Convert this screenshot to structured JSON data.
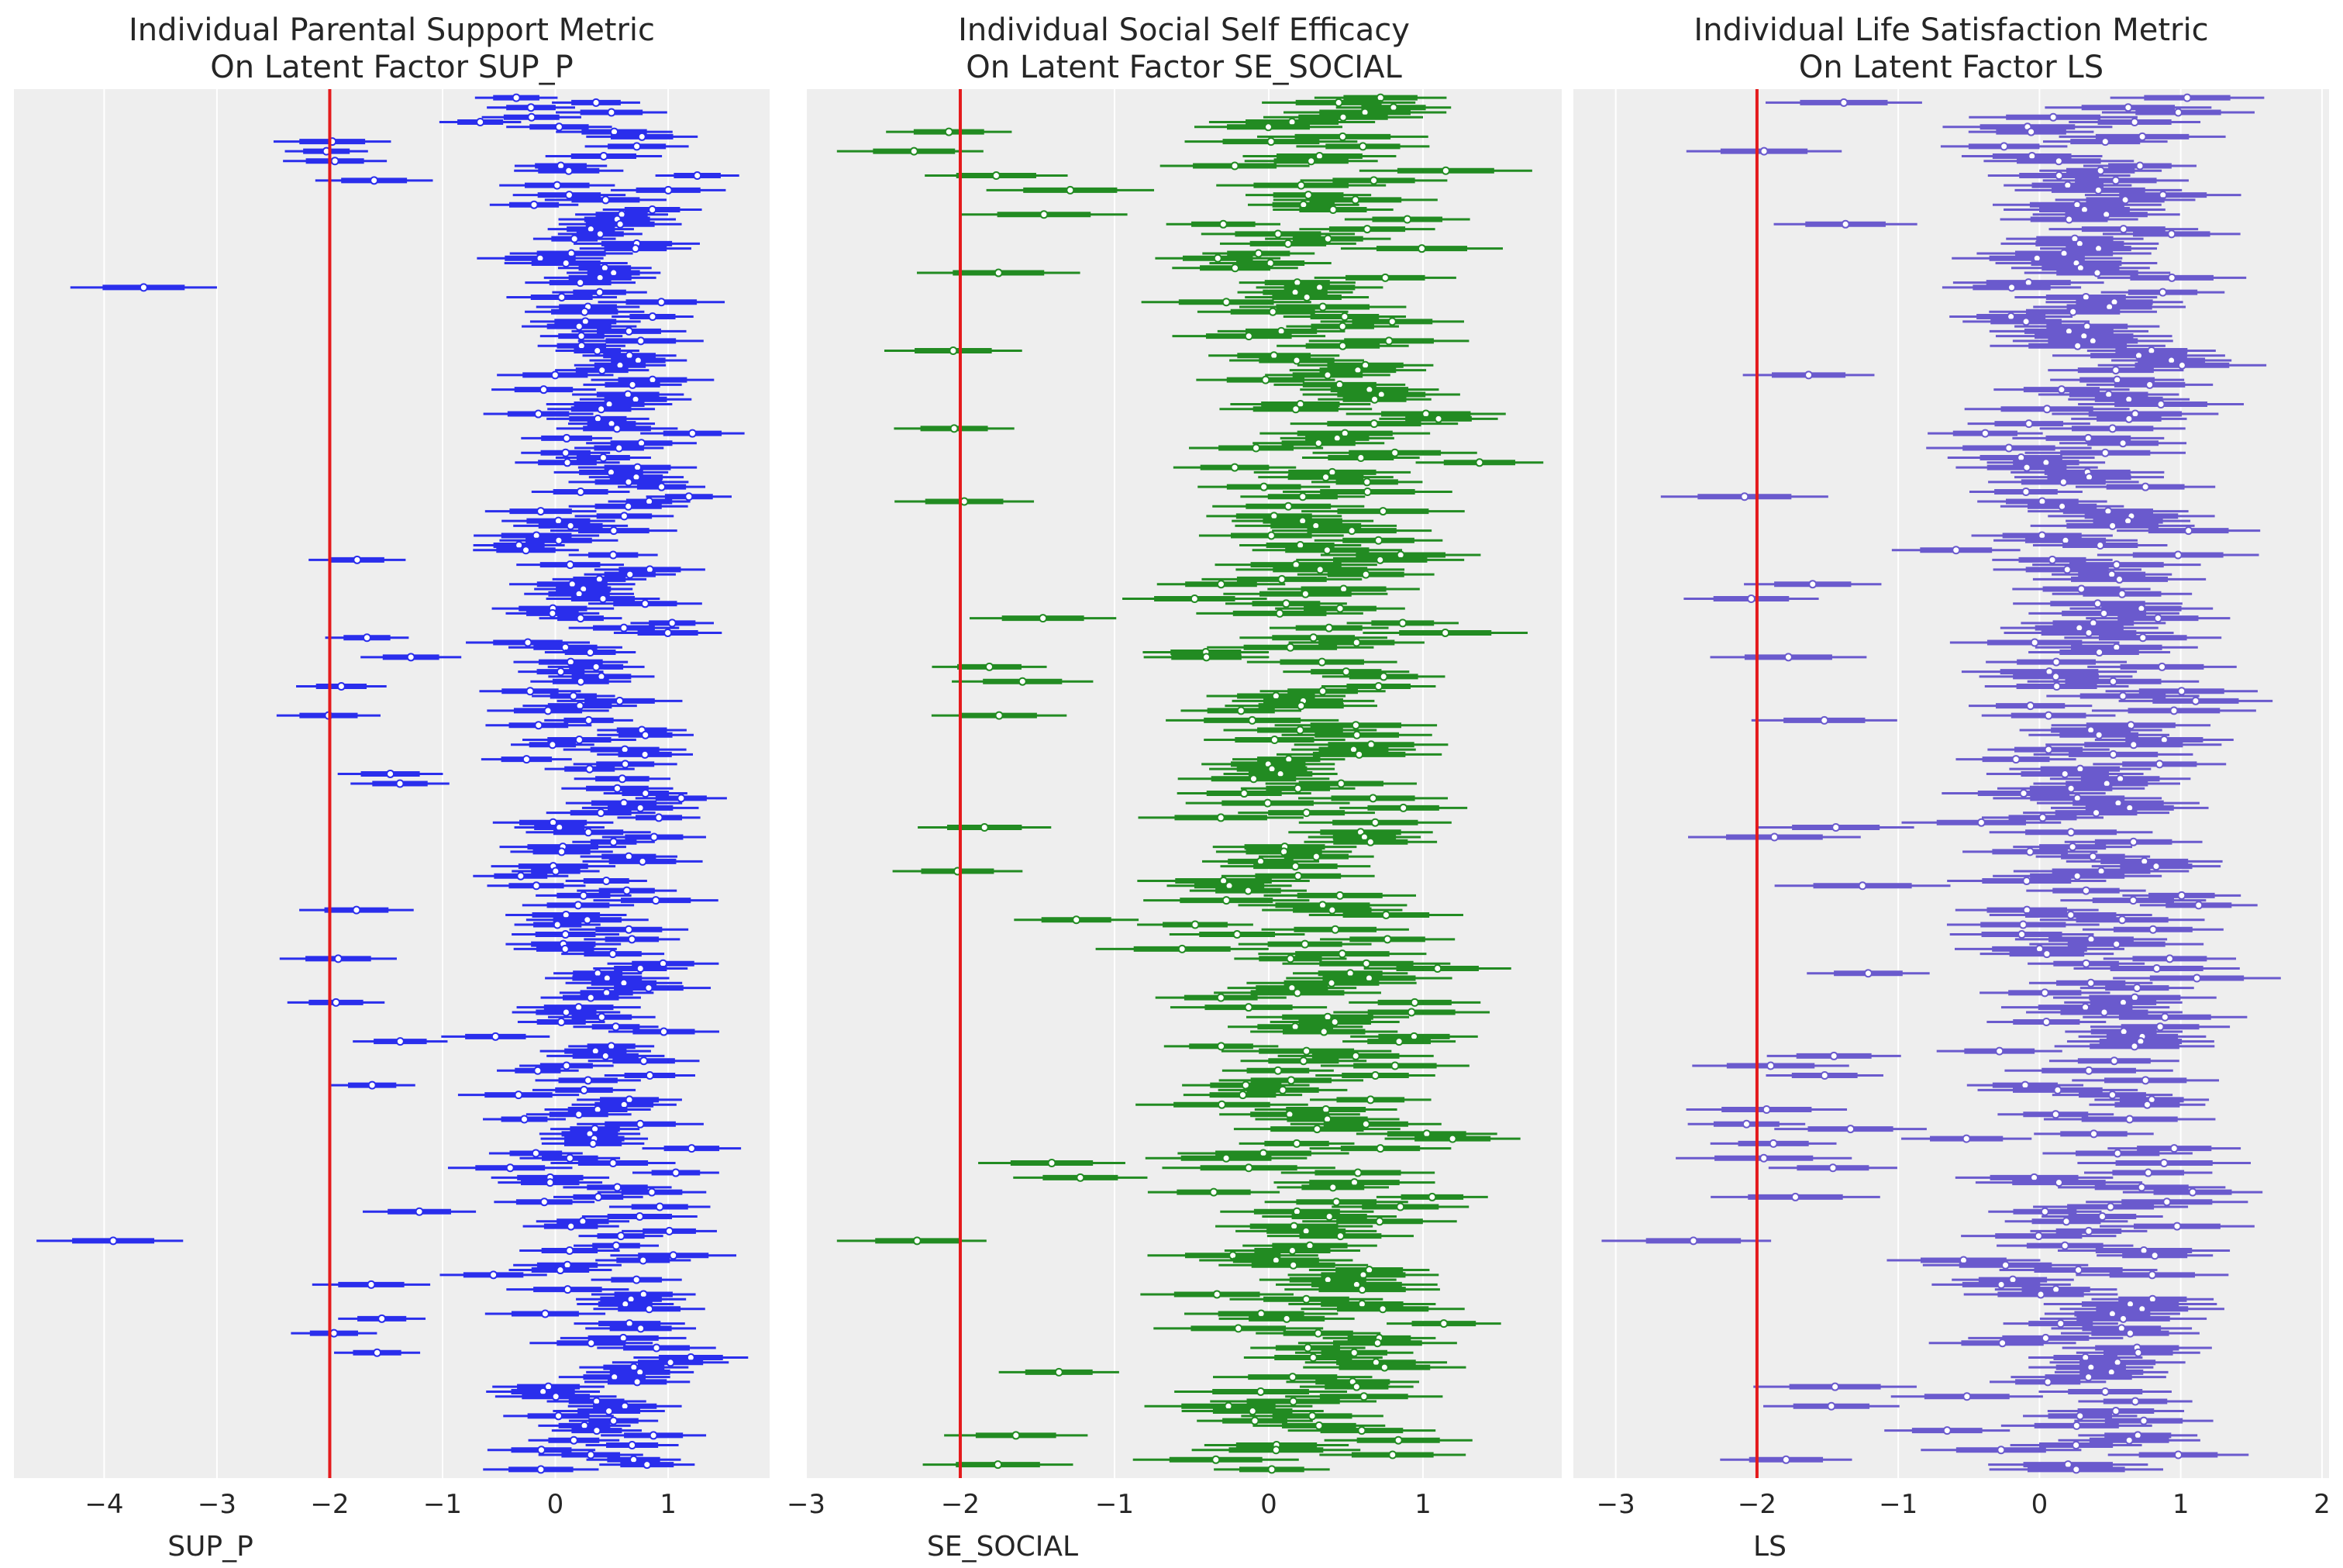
{
  "chart_data": [
    {
      "type": "forest",
      "title_line1": "Individual Parental Support Metric",
      "title_line2": "On Latent Factor SUP_P",
      "xlabel": "SUP_P",
      "xlim": [
        -4.8,
        1.9
      ],
      "xticks": [
        -4,
        -3,
        -2,
        -1,
        0,
        1
      ],
      "tick_labels": [
        "−4",
        "−3",
        "−2",
        "−1",
        "0",
        "1"
      ],
      "reference_line_x": -2,
      "reference_line_color": "#e41a1c",
      "series_color": "#2a2eec",
      "grid": true,
      "n_individuals": 283,
      "summary": {
        "median_range": [
          -3.9,
          1.1
        ],
        "typical_hdi_halfwidth": 0.45
      },
      "outliers": [
        {
          "median": -3.65,
          "hdi94": [
            -4.3,
            -3.0
          ],
          "row_fraction": 0.14
        },
        {
          "median": -3.92,
          "hdi94": [
            -4.6,
            -3.3
          ],
          "row_fraction": 0.835
        }
      ]
    },
    {
      "type": "forest",
      "title_line1": "Individual Social Self Efficacy",
      "title_line2": "On Latent Factor SE_SOCIAL",
      "xlabel": "SE_SOCIAL",
      "xlim": [
        -3.0,
        1.9
      ],
      "xticks": [
        -3,
        -2,
        -1,
        0,
        1
      ],
      "tick_labels": [
        "−3",
        "−2",
        "−1",
        "0",
        "1"
      ],
      "reference_line_x": -2,
      "reference_line_color": "#e41a1c",
      "series_color": "#228b22",
      "grid": true,
      "n_individuals": 283,
      "summary": {
        "median_range": [
          -2.3,
          1.3
        ],
        "typical_hdi_halfwidth": 0.45
      },
      "outliers": [
        {
          "median": -2.3,
          "hdi94": [
            -2.8,
            -1.85
          ],
          "row_fraction": 0.04
        },
        {
          "median": -2.28,
          "hdi94": [
            -2.8,
            -1.83
          ],
          "row_fraction": 0.835
        }
      ]
    },
    {
      "type": "forest",
      "title_line1": "Individual Life Satisfaction Metric",
      "title_line2": "On Latent Factor LS",
      "xlabel": "LS",
      "xlim": [
        -3.3,
        2.05
      ],
      "xticks": [
        -3,
        -2,
        -1,
        0,
        1,
        2
      ],
      "tick_labels": [
        "−3",
        "−2",
        "−1",
        "0",
        "1",
        "2"
      ],
      "reference_line_x": -2,
      "reference_line_color": "#e41a1c",
      "series_color": "#6a5acd",
      "grid": true,
      "n_individuals": 283,
      "summary": {
        "median_range": [
          -2.5,
          1.3
        ],
        "typical_hdi_halfwidth": 0.5
      },
      "outliers": [
        {
          "median": -1.95,
          "hdi94": [
            -2.5,
            -1.4
          ],
          "row_fraction": 0.04
        },
        {
          "median": -2.45,
          "hdi94": [
            -3.1,
            -1.9
          ],
          "row_fraction": 0.835
        }
      ]
    }
  ]
}
